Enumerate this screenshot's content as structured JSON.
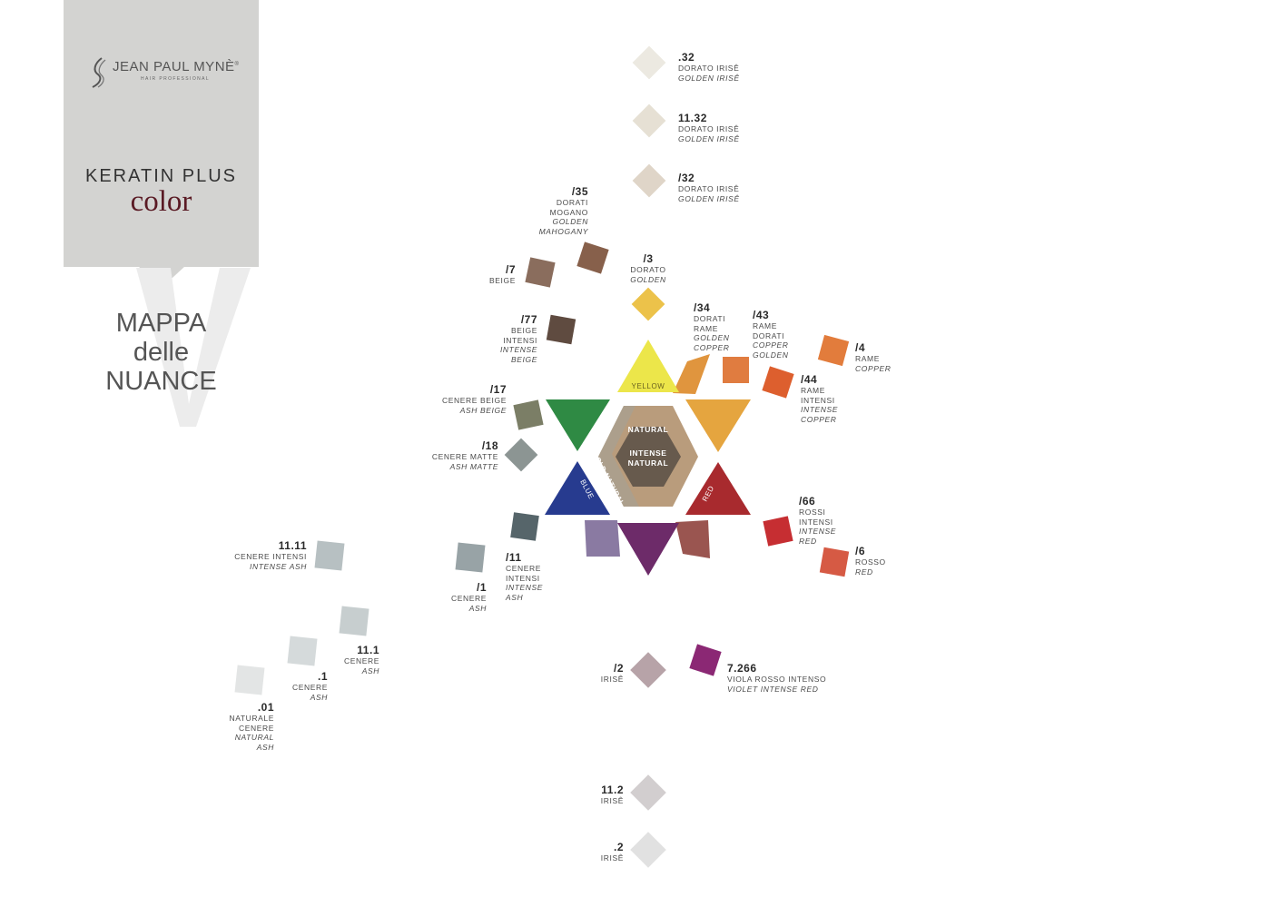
{
  "brand": {
    "name": "JEAN PAUL MYNÈ",
    "reg": "®",
    "sub": "HAIR PROFESSIONAL"
  },
  "product": {
    "line": "KERATIN PLUS",
    "name": "color"
  },
  "map_title": [
    "MAPPA",
    "delle",
    "NUANCE"
  ],
  "wheel": {
    "yellow": "YELLOW",
    "blue": "BLUE",
    "red": "RED",
    "natural": "NATURAL",
    "intense_natural": [
      "INTENSE",
      "NATURAL"
    ],
    "cold_natural": "COLD NATURAL",
    "colors": {
      "yellow": "#ece64a",
      "orange": "#e5a53f",
      "red": "#a82a2e",
      "violet": "#6d2b69",
      "blue": "#273b8f",
      "green": "#2f8a44",
      "natural": "#ac9f8c",
      "natural_outer": "#b99c7c",
      "intense_natural": "#675a4d"
    }
  },
  "shades": [
    {
      "id": "s32",
      "code": ".32",
      "name": [
        "DORATO IRISÊ"
      ],
      "italic": [
        "GOLDEN IRISÊ"
      ],
      "color": "#ece9e1"
    },
    {
      "id": "s1132",
      "code": "11.32",
      "name": [
        "DORATO IRISÊ"
      ],
      "italic": [
        "GOLDEN IRISÊ"
      ],
      "color": "#e6e0d4"
    },
    {
      "id": "sl32",
      "code": "/32",
      "name": [
        "DORATO IRISÊ"
      ],
      "italic": [
        "GOLDEN IRISÊ"
      ],
      "color": "#dfd5c8"
    },
    {
      "id": "sl35",
      "code": "/35",
      "name": [
        "DORATI",
        "MOGANO"
      ],
      "italic": [
        "GOLDEN",
        "MAHOGANY"
      ],
      "color": "#87604b"
    },
    {
      "id": "sl7",
      "code": "/7",
      "name": [
        "BEIGE"
      ],
      "italic": [],
      "color": "#8a6d5d"
    },
    {
      "id": "sl3",
      "code": "/3",
      "name": [
        "DORATO"
      ],
      "italic": [
        "GOLDEN"
      ],
      "color": "#ecc24a"
    },
    {
      "id": "sl77",
      "code": "/77",
      "name": [
        "BEIGE",
        "INTENSI"
      ],
      "italic": [
        "INTENSE",
        "BEIGE"
      ],
      "color": "#5f4b40"
    },
    {
      "id": "sl34",
      "code": "/34",
      "name": [
        "DORATI",
        "RAME"
      ],
      "italic": [
        "GOLDEN",
        "COPPER"
      ],
      "color": "#e0953e"
    },
    {
      "id": "sl43",
      "code": "/43",
      "name": [
        "RAME",
        "DORATI"
      ],
      "italic": [
        "COPPER",
        "GOLDEN"
      ],
      "color": "#e07c40"
    },
    {
      "id": "sl4",
      "code": "/4",
      "name": [
        "RAME"
      ],
      "italic": [
        "COPPER"
      ],
      "color": "#e27c3c"
    },
    {
      "id": "sl44",
      "code": "/44",
      "name": [
        "RAME",
        "INTENSI"
      ],
      "italic": [
        "INTENSE",
        "COPPER"
      ],
      "color": "#dd5f2e"
    },
    {
      "id": "sl17",
      "code": "/17",
      "name": [
        "CENERE BEIGE"
      ],
      "italic": [
        "ASH BEIGE"
      ],
      "color": "#7b7e66"
    },
    {
      "id": "sl18",
      "code": "/18",
      "name": [
        "CENERE MATTE"
      ],
      "italic": [
        "ASH MATTE"
      ],
      "color": "#8c9593"
    },
    {
      "id": "sl66",
      "code": "/66",
      "name": [
        "ROSSI",
        "INTENSI"
      ],
      "italic": [
        "INTENSE",
        "RED"
      ],
      "color": "#c62e32"
    },
    {
      "id": "sl6",
      "code": "/6",
      "name": [
        "ROSSO"
      ],
      "italic": [
        "RED"
      ],
      "color": "#d65a44"
    },
    {
      "id": "s1111",
      "code": "11.11",
      "name": [
        "CENERE INTENSI"
      ],
      "italic": [
        "INTENSE ASH"
      ],
      "color": "#b7c0c2"
    },
    {
      "id": "sl11",
      "code": "/11",
      "name": [
        "CENERE",
        "INTENSI"
      ],
      "italic": [
        "INTENSE",
        "ASH"
      ],
      "color": "#56656a"
    },
    {
      "id": "sl1",
      "code": "/1",
      "name": [
        "CENERE"
      ],
      "italic": [
        "ASH"
      ],
      "color": "#98a3a6"
    },
    {
      "id": "s111",
      "code": "11.1",
      "name": [
        "CENERE"
      ],
      "italic": [
        "ASH"
      ],
      "color": "#c7cecf"
    },
    {
      "id": "s1",
      "code": ".1",
      "name": [
        "CENERE"
      ],
      "italic": [
        "ASH"
      ],
      "color": "#d5dadb"
    },
    {
      "id": "s01",
      "code": ".01",
      "name": [
        "NATURALE",
        "CENERE"
      ],
      "italic": [
        "NATURAL",
        "ASH"
      ],
      "color": "#e3e5e5"
    },
    {
      "id": "sl2",
      "code": "/2",
      "name": [
        "IRISÊ"
      ],
      "italic": [],
      "color": "#b7a3a8"
    },
    {
      "id": "s7266",
      "code": "7.266",
      "name": [
        "VIOLA ROSSO INTENSO"
      ],
      "italic": [
        "VIOLET INTENSE RED"
      ],
      "color": "#8b2874"
    },
    {
      "id": "s112",
      "code": "11.2",
      "name": [
        "IRISÊ"
      ],
      "italic": [],
      "color": "#d2cecf"
    },
    {
      "id": "s2",
      "code": ".2",
      "name": [
        "IRISÊ"
      ],
      "italic": [],
      "color": "#e1e1e1"
    }
  ],
  "wedges": {
    "yellow_orange": "#e0953e",
    "orange_red": "#a5573f",
    "red_violet": "#9a5550",
    "violet_blue": "#8a7aa2",
    "blue_green": "#56656a",
    "green_yellow": "#7b7e66"
  }
}
